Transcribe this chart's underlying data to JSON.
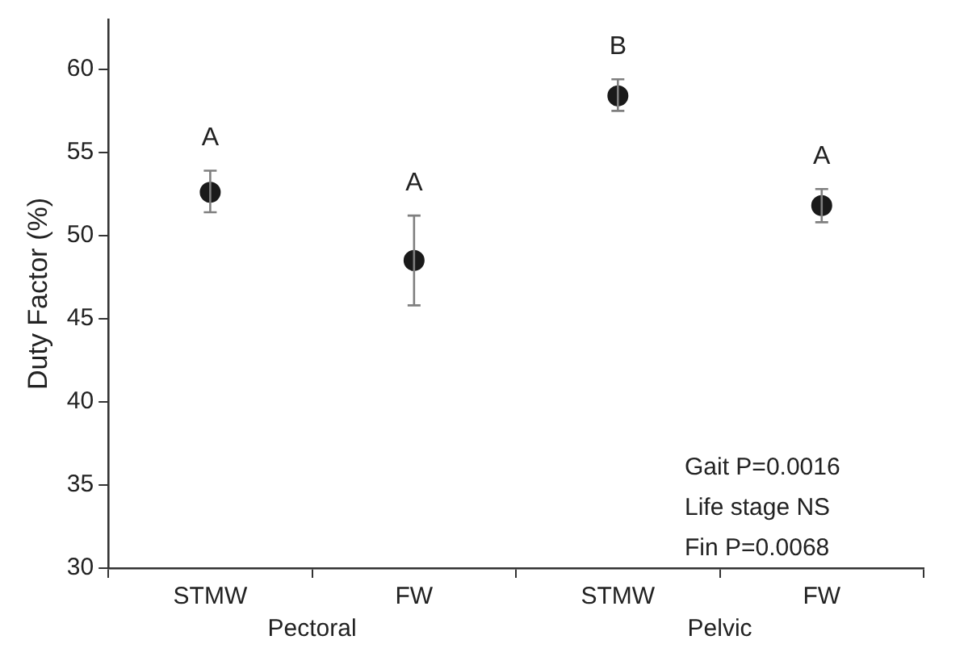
{
  "chart_data": {
    "type": "scatter",
    "ylabel": "Duty Factor (%)",
    "categories": [
      "STMW",
      "FW",
      "STMW",
      "FW"
    ],
    "series": [
      {
        "color": "#1a1a1a",
        "values": [
          52.6,
          48.5,
          null,
          null
        ],
        "errors": [
          [
            51.4,
            53.9
          ],
          [
            45.8,
            51.2
          ],
          null,
          null
        ],
        "value_labels": [
          "A",
          "A",
          null,
          null
        ]
      },
      {
        "color": "#1a1a1a",
        "values": [
          null,
          null,
          58.4,
          51.8
        ],
        "errors": [
          null,
          null,
          [
            57.5,
            59.4
          ],
          [
            50.8,
            52.8
          ]
        ],
        "value_labels": [
          null,
          null,
          "B",
          "A"
        ]
      }
    ],
    "ylim": [
      30,
      63
    ],
    "yticks": [
      30,
      35,
      40,
      45,
      50,
      55,
      60
    ],
    "marker": "circle",
    "grid": false,
    "legend": false,
    "annotations": [
      "Pectoral",
      "Pelvic",
      "Gait P=0.0016",
      "Life stage NS",
      "Fin P=0.0068"
    ]
  }
}
